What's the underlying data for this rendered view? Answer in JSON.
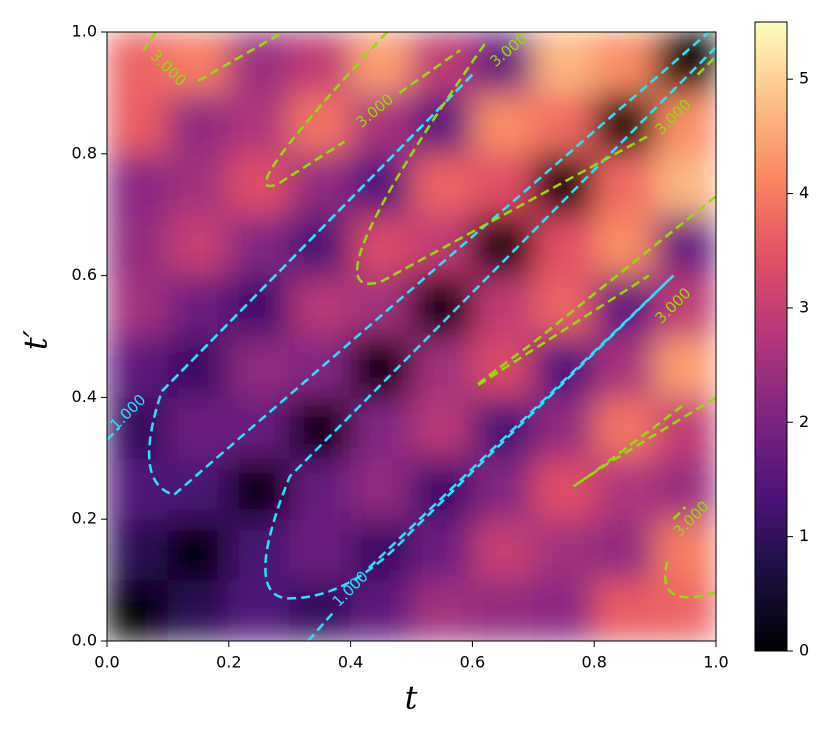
{
  "chart_data": {
    "type": "heatmap",
    "xlabel": "t",
    "ylabel": "t′",
    "x": [
      0.05,
      0.15,
      0.25,
      0.35,
      0.45,
      0.55,
      0.65,
      0.75,
      0.85,
      0.95
    ],
    "y": [
      0.05,
      0.15,
      0.25,
      0.35,
      0.45,
      0.55,
      0.65,
      0.75,
      0.85,
      0.95
    ],
    "z": [
      [
        0,
        0.9,
        1.4,
        1.0,
        1.6,
        2.5,
        2.3,
        2.2,
        3.6,
        3.7
      ],
      [
        0.9,
        0,
        1.3,
        1.8,
        1.1,
        1.8,
        3.0,
        2.5,
        2.3,
        4.0
      ],
      [
        1.4,
        1.3,
        0,
        1.7,
        2.3,
        1.2,
        2.1,
        3.4,
        2.7,
        2.4
      ],
      [
        1.0,
        1.8,
        1.7,
        0,
        2.1,
        2.8,
        1.3,
        2.3,
        3.9,
        2.9
      ],
      [
        1.6,
        1.1,
        2.3,
        2.1,
        0,
        2.5,
        3.3,
        1.4,
        2.6,
        4.4
      ],
      [
        2.5,
        1.8,
        1.2,
        2.8,
        2.5,
        0,
        2.9,
        3.7,
        1.6,
        2.9
      ],
      [
        2.3,
        3.0,
        2.1,
        1.3,
        3.3,
        2.9,
        0,
        3.4,
        4.2,
        1.7
      ],
      [
        2.2,
        2.5,
        3.4,
        2.3,
        1.4,
        3.7,
        3.4,
        0,
        3.8,
        4.7
      ],
      [
        3.6,
        2.3,
        2.7,
        3.9,
        2.6,
        1.6,
        4.2,
        3.8,
        0,
        4.2
      ],
      [
        3.7,
        4.0,
        2.4,
        2.9,
        4.4,
        2.9,
        1.7,
        4.7,
        4.2,
        0
      ]
    ],
    "xlim": [
      0,
      1
    ],
    "ylim": [
      0,
      1
    ],
    "xticks": [
      {
        "value": 0,
        "label": "0.0"
      },
      0.2,
      0.4,
      0.6,
      0.8,
      {
        "value": 1,
        "label": "1.0"
      }
    ],
    "yticks": [
      {
        "value": 0,
        "label": "0.0"
      },
      0.2,
      0.4,
      0.6,
      0.8,
      {
        "value": 1,
        "label": "1.0"
      }
    ],
    "colormap": "magma",
    "clim": [
      0,
      5.5
    ],
    "cticks": [
      0,
      1,
      2,
      3,
      4,
      5
    ],
    "contours": [
      {
        "level": 1,
        "label": "1.000",
        "color": "#22e5ff"
      },
      {
        "level": 3,
        "label": "3.000",
        "color": "#8ee000"
      }
    ]
  }
}
